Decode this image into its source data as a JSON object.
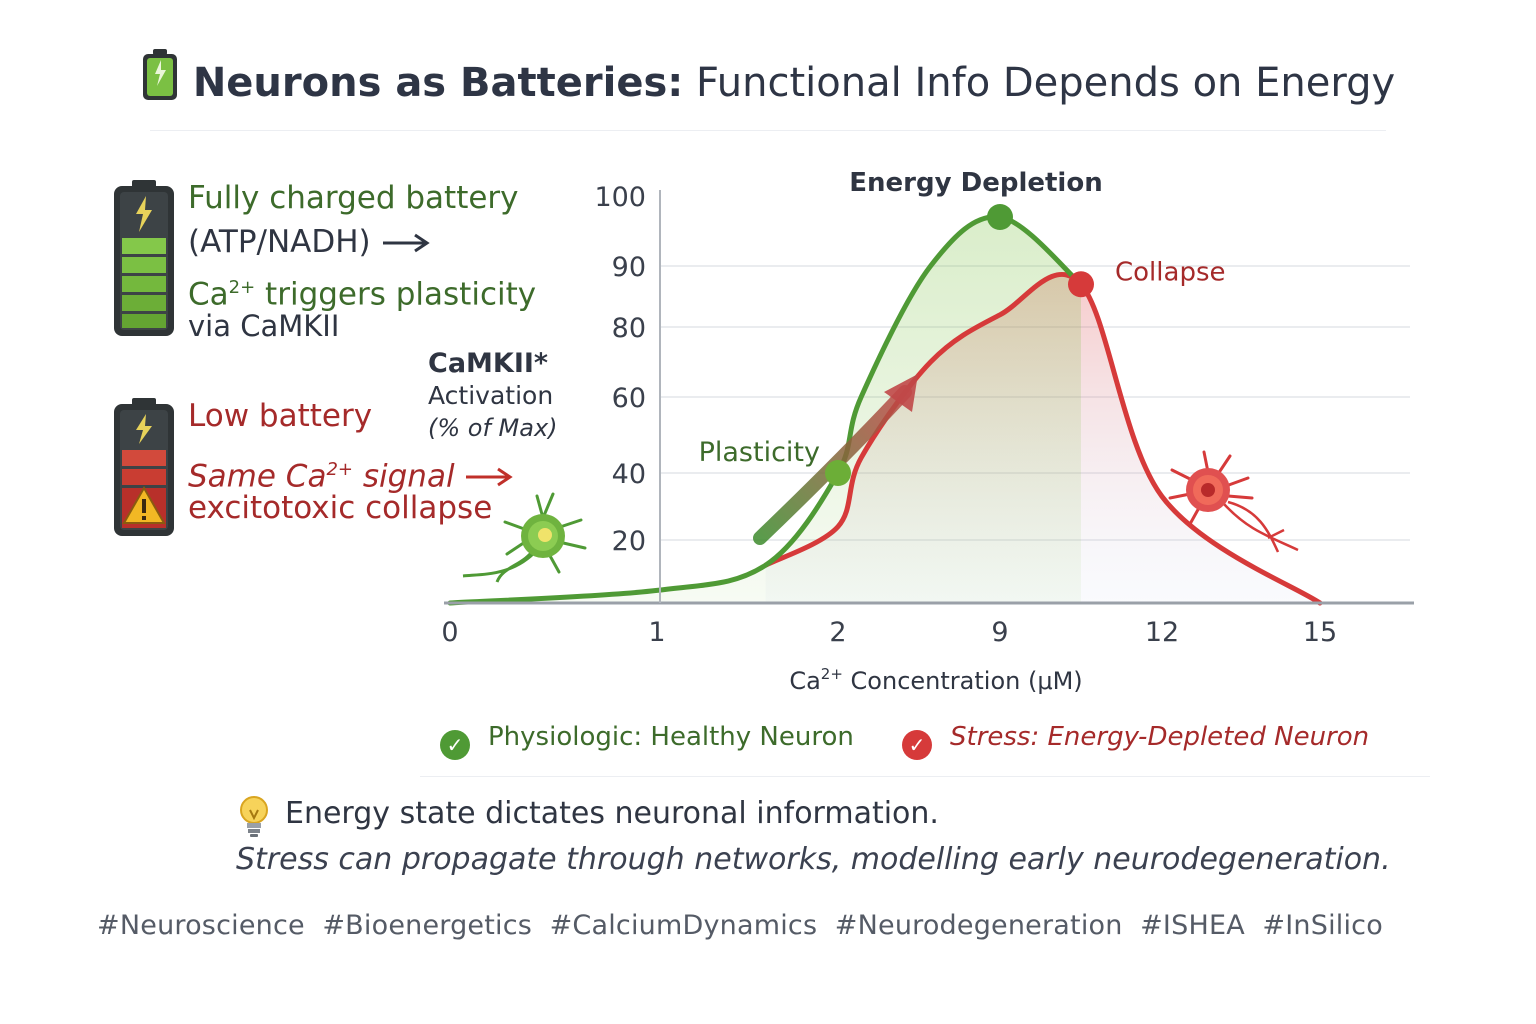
{
  "title": {
    "bold": "Neurons as Batteries:",
    "rest": "Functional Info Depends on Energy"
  },
  "left_panel": {
    "charged": {
      "line1": "Fully charged battery",
      "line2": "(ATP/NADH)",
      "line3_pre": "Ca",
      "line3_sup": "2+",
      "line3_post": " triggers plasticity",
      "line4": "via CaMKII"
    },
    "low": {
      "line1": "Low battery",
      "line2_pre": "Same Ca",
      "line2_sup": "2+",
      "line2_post": " signal",
      "line3": "excitotoxic collapse"
    }
  },
  "chart_data": {
    "type": "line",
    "ylabel": {
      "bold": "CaMKII*",
      "line2": "Activation",
      "line3": "(% of Max)"
    },
    "xlabel": {
      "pre": "Ca",
      "sup": "2+",
      "post": " Concentration (μM)"
    },
    "x_ticks": [
      "0",
      "1",
      "2",
      "9",
      "12",
      "15"
    ],
    "y_ticks": [
      100,
      90,
      80,
      60,
      40,
      20
    ],
    "grid": true,
    "series": [
      {
        "name": "Physiologic: Healthy Neuron",
        "color": "#4f9a35",
        "points": [
          [
            0,
            0
          ],
          [
            1,
            4
          ],
          [
            1.6,
            12
          ],
          [
            2,
            40
          ],
          [
            3,
            60
          ],
          [
            6,
            90
          ],
          [
            9,
            97
          ],
          [
            10.5,
            87
          ]
        ]
      },
      {
        "name": "Stress: Energy-Depleted Neuron",
        "color": "#d63a3a",
        "points": [
          [
            1.6,
            12
          ],
          [
            2,
            24
          ],
          [
            3,
            44
          ],
          [
            6,
            70
          ],
          [
            9,
            82
          ],
          [
            10.5,
            87
          ],
          [
            12,
            33
          ],
          [
            15,
            0
          ]
        ]
      }
    ],
    "annotations": [
      {
        "text": "Energy Depletion",
        "x": 9,
        "y": 97,
        "color": "#2f3542"
      },
      {
        "text": "Collapse",
        "x": 10.5,
        "y": 87,
        "color": "#a52a2a"
      },
      {
        "text": "Plasticity",
        "x": 2,
        "y": 40,
        "color": "#3d6b2b"
      }
    ],
    "legend_position": "bottom"
  },
  "legend": {
    "healthy": "Physiologic: Healthy Neuron",
    "stress": "Stress: Energy-Depleted Neuron"
  },
  "notes": {
    "line1": "Energy state dictates neuronal information.",
    "line2": "Stress can propagate through networks, modelling early neurodegeneration."
  },
  "hashtags": "#Neuroscience  #Bioenergetics  #CalciumDynamics  #Neurodegeneration  #ISHEA  #InSilico",
  "colors": {
    "healthy": "#4f9a35",
    "stress": "#d63a3a",
    "title": "#2e3545"
  },
  "icons": [
    "battery-full-icon",
    "battery-low-icon",
    "warning-icon",
    "lightbulb-icon",
    "healthy-neuron-icon",
    "stressed-neuron-icon",
    "check-icon"
  ]
}
